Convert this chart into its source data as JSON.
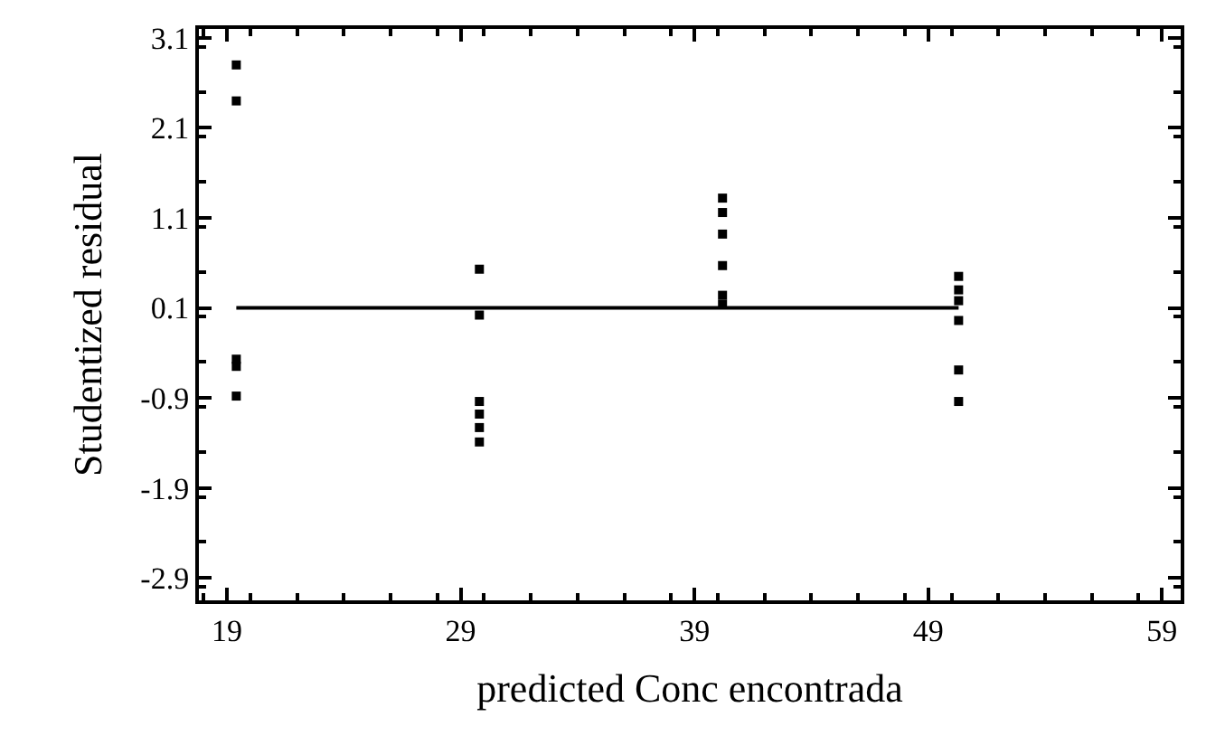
{
  "chart_data": {
    "type": "scatter",
    "xlabel": "predicted Conc encontrada",
    "ylabel": "Studentized residual",
    "x": [
      19.4,
      19.4,
      19.4,
      19.4,
      19.4,
      29.8,
      29.8,
      29.8,
      29.8,
      29.8,
      29.8,
      40.2,
      40.2,
      40.2,
      40.2,
      40.2,
      40.2,
      50.3,
      50.3,
      50.3,
      50.3,
      50.3,
      50.3
    ],
    "values": [
      2.8,
      2.4,
      -0.47,
      -0.55,
      -0.88,
      0.53,
      0.02,
      -0.94,
      -1.08,
      -1.23,
      -1.39,
      1.32,
      1.16,
      0.92,
      0.57,
      0.24,
      0.14,
      0.45,
      0.3,
      0.18,
      -0.04,
      -0.59,
      -0.94
    ],
    "color": "#000000",
    "marker": "square",
    "xlim": [
      17.8,
      59.8
    ],
    "xticks": [
      19,
      29,
      39,
      49,
      59
    ],
    "ylim": [
      -3.15,
      3.2
    ],
    "yticks": [
      -2.9,
      -1.9,
      -0.9,
      0.1,
      1.1,
      2.1,
      3.1
    ],
    "ref_lines": [
      {
        "axis": "y",
        "value": 0.1,
        "color": "#000000",
        "line_style": "solid"
      }
    ],
    "grid": false,
    "legend": false
  }
}
